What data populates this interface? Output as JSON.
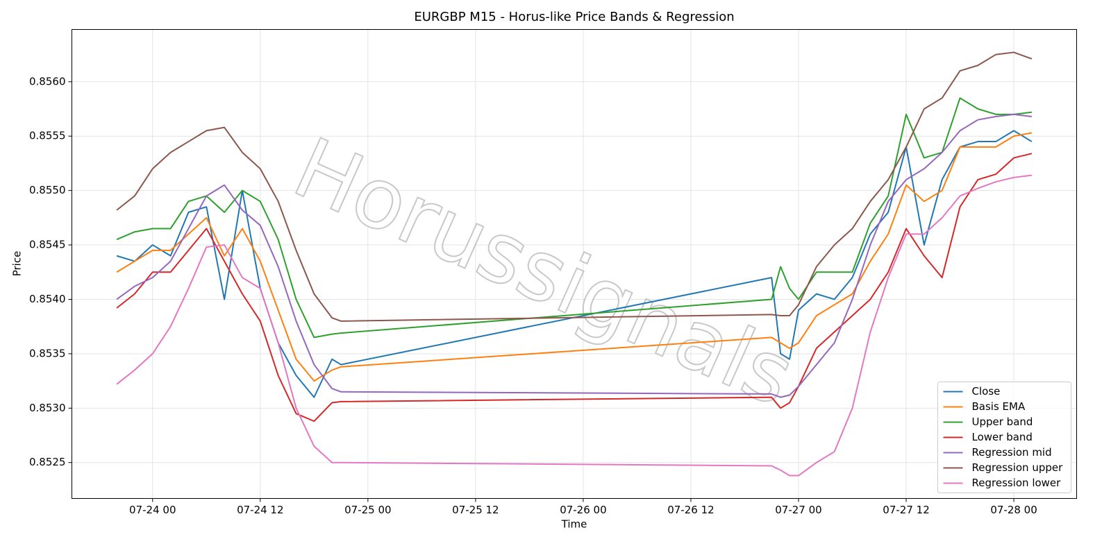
{
  "chart_data": {
    "type": "line",
    "title": "EURGBP M15 - Horus-like Price Bands & Regression",
    "x_label": "Time",
    "y_label": "Price",
    "watermark": "Horussignals",
    "legend": "lower right",
    "grid": true,
    "x": [
      "07-23 20",
      "07-23 22",
      "07-24 00",
      "07-24 02",
      "07-24 04",
      "07-24 06",
      "07-24 08",
      "07-24 10",
      "07-24 12",
      "07-24 14",
      "07-24 16",
      "07-24 18",
      "07-24 20",
      "07-24 21",
      "07-26 21",
      "07-26 22",
      "07-26 23",
      "07-27 00",
      "07-27 02",
      "07-27 04",
      "07-27 06",
      "07-27 08",
      "07-27 10",
      "07-27 12",
      "07-27 14",
      "07-27 16",
      "07-27 18",
      "07-27 20",
      "07-27 22",
      "07-28 00",
      "07-28 02"
    ],
    "xlim": [
      "07-23 15",
      "07-28 07"
    ],
    "xticks": [
      "07-24 00",
      "07-24 12",
      "07-25 00",
      "07-25 12",
      "07-26 00",
      "07-26 12",
      "07-27 00",
      "07-27 12",
      "07-28 00"
    ],
    "ylim": [
      0.85217,
      0.85648
    ],
    "yticks": [
      {
        "value": 0.8525,
        "label": "0.8525"
      },
      {
        "value": 0.853,
        "label": "0.8530"
      },
      {
        "value": 0.8535,
        "label": "0.8535"
      },
      {
        "value": 0.854,
        "label": "0.8540"
      },
      {
        "value": 0.8545,
        "label": "0.8545"
      },
      {
        "value": 0.855,
        "label": "0.8550"
      },
      {
        "value": 0.8555,
        "label": "0.8555"
      },
      {
        "value": 0.856,
        "label": "0.8560"
      }
    ],
    "series": [
      {
        "name": "Close",
        "color": "#1f77b4",
        "values": [
          0.8544,
          0.85435,
          0.8545,
          0.8544,
          0.8548,
          0.85485,
          0.854,
          0.855,
          0.8541,
          0.8536,
          0.8533,
          0.8531,
          0.85345,
          0.8534,
          0.8542,
          0.8535,
          0.85345,
          0.8539,
          0.85405,
          0.854,
          0.8542,
          0.8546,
          0.8548,
          0.8554,
          0.8545,
          0.8551,
          0.8554,
          0.85545,
          0.85545,
          0.85555,
          0.85545
        ]
      },
      {
        "name": "Basis EMA",
        "color": "#ff7f0e",
        "values": [
          0.85425,
          0.85435,
          0.85445,
          0.85445,
          0.8546,
          0.85475,
          0.8544,
          0.85465,
          0.85435,
          0.8539,
          0.85345,
          0.85325,
          0.85335,
          0.85338,
          0.85365,
          0.8536,
          0.85355,
          0.8536,
          0.85385,
          0.85395,
          0.85405,
          0.85435,
          0.8546,
          0.85505,
          0.8549,
          0.855,
          0.8554,
          0.8554,
          0.8554,
          0.8555,
          0.85553
        ]
      },
      {
        "name": "Upper band",
        "color": "#2ca02c",
        "values": [
          0.85455,
          0.85462,
          0.85465,
          0.85465,
          0.8549,
          0.85495,
          0.8548,
          0.855,
          0.8549,
          0.85455,
          0.854,
          0.85365,
          0.85368,
          0.85369,
          0.854,
          0.8543,
          0.8541,
          0.854,
          0.85425,
          0.85425,
          0.85425,
          0.8547,
          0.85495,
          0.8557,
          0.8553,
          0.85535,
          0.85585,
          0.85575,
          0.8557,
          0.8557,
          0.85572
        ]
      },
      {
        "name": "Lower band",
        "color": "#d62728",
        "values": [
          0.85392,
          0.85405,
          0.85425,
          0.85425,
          0.85445,
          0.85465,
          0.85435,
          0.85405,
          0.8538,
          0.8533,
          0.85295,
          0.85288,
          0.85305,
          0.85306,
          0.8531,
          0.853,
          0.85305,
          0.8532,
          0.85355,
          0.8537,
          0.85385,
          0.854,
          0.85425,
          0.85465,
          0.8544,
          0.8542,
          0.85485,
          0.8551,
          0.85515,
          0.8553,
          0.85534
        ]
      },
      {
        "name": "Regression mid",
        "color": "#9467bd",
        "values": [
          0.854,
          0.85412,
          0.8542,
          0.85435,
          0.85465,
          0.85495,
          0.85505,
          0.85482,
          0.85468,
          0.8543,
          0.8538,
          0.8534,
          0.85318,
          0.85315,
          0.85313,
          0.8531,
          0.85312,
          0.8532,
          0.8534,
          0.8536,
          0.854,
          0.8545,
          0.8549,
          0.8551,
          0.8552,
          0.85535,
          0.85555,
          0.85565,
          0.85568,
          0.8557,
          0.85568
        ]
      },
      {
        "name": "Regression upper",
        "color": "#8c564b",
        "values": [
          0.85482,
          0.85495,
          0.8552,
          0.85535,
          0.85545,
          0.85555,
          0.85558,
          0.85535,
          0.8552,
          0.8549,
          0.85445,
          0.85405,
          0.85383,
          0.8538,
          0.85386,
          0.85385,
          0.85385,
          0.85395,
          0.8543,
          0.8545,
          0.85465,
          0.8549,
          0.8551,
          0.8554,
          0.85575,
          0.85585,
          0.8561,
          0.85615,
          0.85625,
          0.85627,
          0.85621
        ]
      },
      {
        "name": "Regression lower",
        "color": "#e377c2",
        "values": [
          0.85322,
          0.85335,
          0.8535,
          0.85375,
          0.8541,
          0.85448,
          0.8545,
          0.8542,
          0.8541,
          0.8536,
          0.853,
          0.85265,
          0.8525,
          0.8525,
          0.85247,
          0.85243,
          0.85238,
          0.85238,
          0.8525,
          0.8526,
          0.853,
          0.8537,
          0.8542,
          0.8546,
          0.8546,
          0.85475,
          0.85495,
          0.85502,
          0.85508,
          0.85512,
          0.85514
        ]
      }
    ]
  }
}
